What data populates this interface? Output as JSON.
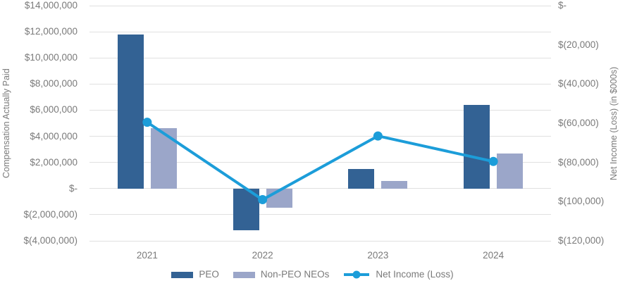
{
  "chart": {
    "left_axis_title": "Compensation Actually Paid",
    "right_axis_title": "Net Income (Loss) (in $000s)",
    "legend": [
      {
        "label": "PEO",
        "type": "bar",
        "color": "#336294"
      },
      {
        "label": "Non-PEO NEOs",
        "type": "bar",
        "color": "#9ba6c9"
      },
      {
        "label": "Net Income (Loss)",
        "type": "line",
        "color": "#1c9dd9"
      }
    ],
    "colors": {
      "peo_bar": "#336294",
      "non_peo_bar": "#9ba6c9",
      "net_income_line": "#1c9dd9",
      "gridline": "#e0e0e0",
      "axis_text": "#7a7a7a",
      "background": "#ffffff"
    }
  },
  "chart_data": {
    "type": "bar+line combo (dual axis)",
    "categories": [
      "2021",
      "2022",
      "2023",
      "2024"
    ],
    "series": [
      {
        "name": "PEO",
        "type": "bar",
        "axis": "left",
        "color": "#336294",
        "values": [
          11800000,
          -3200000,
          1500000,
          6400000
        ]
      },
      {
        "name": "Non-PEO NEOs",
        "type": "bar",
        "axis": "left",
        "color": "#9ba6c9",
        "values": [
          4600000,
          -1450000,
          600000,
          2700000
        ]
      },
      {
        "name": "Net Income (Loss)",
        "type": "line",
        "axis": "right",
        "color": "#1c9dd9",
        "values": [
          -59500,
          -99000,
          -66500,
          -79500
        ]
      }
    ],
    "left_axis": {
      "title": "Compensation Actually Paid",
      "min": -4000000,
      "max": 14000000,
      "tick_step": 2000000,
      "tick_labels": [
        "$14,000,000",
        "$12,000,000",
        "$10,000,000",
        "$8,000,000",
        "$6,000,000",
        "$4,000,000",
        "$2,000,000",
        "$-",
        "$(2,000,000)",
        "$(4,000,000)"
      ]
    },
    "right_axis": {
      "title": "Net Income (Loss) (in $000s)",
      "min": -120000,
      "max": 0,
      "tick_step": 20000,
      "tick_labels": [
        "$-",
        "$(20,000)",
        "$(40,000)",
        "$(60,000)",
        "$(80,000)",
        "$(100,000)",
        "$(120,000)"
      ]
    },
    "grid": true,
    "legend_position": "bottom"
  }
}
